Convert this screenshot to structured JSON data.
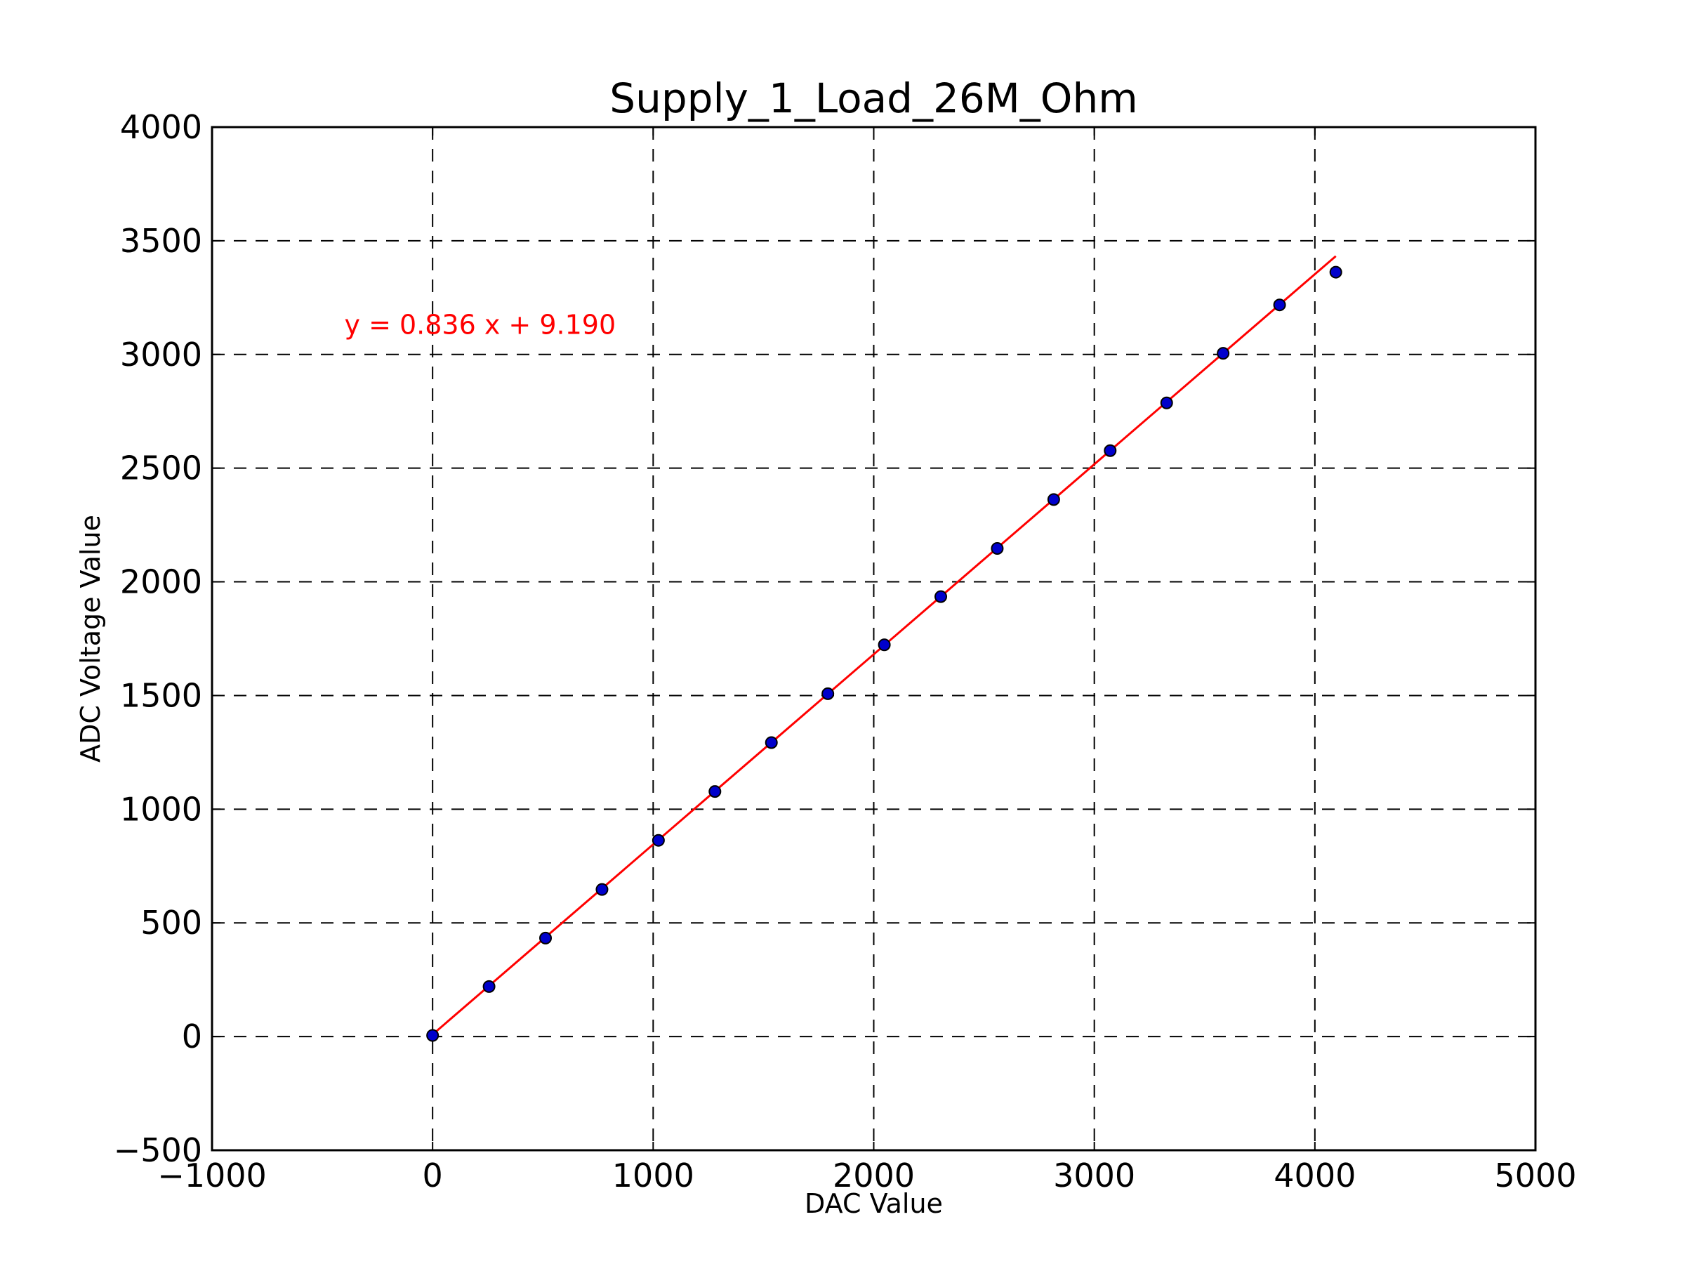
{
  "chart_data": {
    "type": "scatter",
    "title": "Supply_1_Load_26M_Ohm",
    "xlabel": "DAC Value",
    "ylabel": "ADC Voltage Value",
    "xlim": [
      -1000,
      5000
    ],
    "ylim": [
      -500,
      4000
    ],
    "xticks": [
      -1000,
      0,
      1000,
      2000,
      3000,
      4000,
      5000
    ],
    "xtick_labels": [
      "−1000",
      "0",
      "1000",
      "2000",
      "3000",
      "4000",
      "5000"
    ],
    "yticks": [
      -500,
      0,
      500,
      1000,
      1500,
      2000,
      2500,
      3000,
      3500,
      4000
    ],
    "ytick_labels": [
      "−500",
      "0",
      "500",
      "1000",
      "1500",
      "2000",
      "2500",
      "3000",
      "3500",
      "4000"
    ],
    "grid": true,
    "grid_style": "dashed",
    "series": [
      {
        "kind": "scatter",
        "color": "#0000cc",
        "x": [
          0,
          256,
          512,
          768,
          1024,
          1280,
          1536,
          1792,
          2048,
          2304,
          2560,
          2816,
          3072,
          3328,
          3584,
          3840,
          4095
        ],
        "y": [
          5,
          220,
          433,
          647,
          863,
          1078,
          1293,
          1508,
          1723,
          1935,
          2147,
          2362,
          2577,
          2787,
          3005,
          3218,
          3362
        ]
      },
      {
        "kind": "line",
        "color": "#ff0000",
        "slope": 0.836,
        "intercept": 9.19,
        "x_range": [
          0,
          4095
        ]
      }
    ],
    "annotations": [
      {
        "text": "y = 0.836 x + 9.190",
        "x": -400,
        "y": 3090,
        "color": "#ff0000"
      }
    ]
  }
}
